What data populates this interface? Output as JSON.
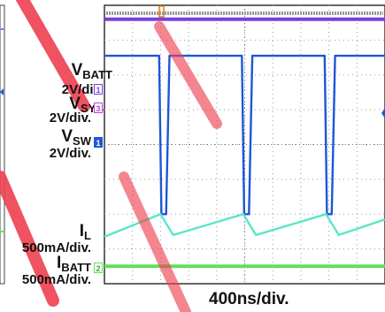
{
  "chart_data": {
    "type": "line",
    "time_scale_label": "400ns/div.",
    "x_divisions": 10,
    "y_divisions": 8,
    "grid": true,
    "x_unit": "div",
    "series": [
      {
        "name": "VBATT",
        "scale_label": "2V/div.",
        "channel_marker": "1",
        "color": "#7b3fe0",
        "x": [
          0,
          10
        ],
        "y": [
          7.6,
          7.6
        ]
      },
      {
        "name": "VSYS",
        "scale_label": "2V/div.",
        "channel_marker": "3",
        "color": "#1e56d8",
        "x": [
          0,
          1.95,
          2.03,
          2.2,
          2.32,
          4.9,
          4.98,
          5.15,
          5.27,
          7.85,
          7.93,
          8.1,
          8.22,
          10
        ],
        "y": [
          6.55,
          6.55,
          2.0,
          2.0,
          6.55,
          6.55,
          2.0,
          2.0,
          6.55,
          6.55,
          2.0,
          2.0,
          6.55,
          6.55
        ]
      },
      {
        "name": "VSW",
        "scale_label": "2V/div.",
        "channel_marker": "1",
        "color": "#1e56d8",
        "x": [],
        "y": []
      },
      {
        "name": "IL",
        "scale_label": "500mA/div.",
        "channel_marker": "",
        "color": "#57e8c6",
        "x": [
          0,
          2.0,
          2.45,
          4.95,
          5.4,
          7.9,
          8.35,
          10
        ],
        "y": [
          1.35,
          2.0,
          1.4,
          2.0,
          1.4,
          2.0,
          1.4,
          1.85
        ]
      },
      {
        "name": "IBATT",
        "scale_label": "500mA/div.",
        "channel_marker": "2",
        "color": "#5fe05a",
        "x": [
          0,
          10
        ],
        "y": [
          0.5,
          0.5
        ]
      }
    ],
    "labels": {
      "vbatt_main": "V",
      "vbatt_sub": "BATT",
      "vbatt_scale": "2V/div.",
      "vsys_main": "V",
      "vsys_sub": "SYS",
      "vsys_scale": "2V/div.",
      "vsw_main": "V",
      "vsw_sub": "SW",
      "vsw_scale": "2V/div.",
      "il_main": "I",
      "il_sub": "L",
      "il_scale": "500mA/div.",
      "ibatt_main": "I",
      "ibatt_sub": "BATT",
      "ibatt_scale": "500mA/div.",
      "xscale": "400ns/div."
    },
    "markers": {
      "ch1": "1",
      "ch2": "2",
      "ch3": "3",
      "trigger": "T"
    },
    "colors": {
      "grid": "#9a9a9a",
      "screen_bg": "#ffffff",
      "trigger": "#e07a1a",
      "watermark": "#e8202a"
    }
  }
}
